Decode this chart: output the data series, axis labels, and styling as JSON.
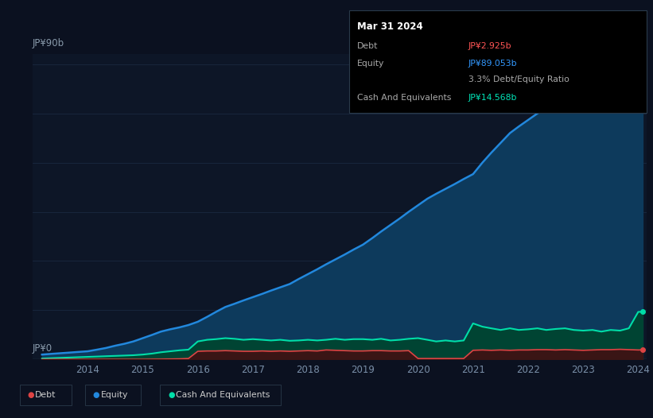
{
  "bg_color": "#0b1120",
  "plot_bg_color": "#0d1627",
  "grid_color": "#1a2840",
  "title_box": {
    "date": "Mar 31 2024",
    "debt_label": "Debt",
    "debt_value": "JP¥2.925b",
    "debt_color": "#ff5555",
    "equity_label": "Equity",
    "equity_value": "JP¥89.053b",
    "equity_color": "#3399ff",
    "ratio_text": "3.3% Debt/Equity Ratio",
    "ratio_bold": "3.3%",
    "ratio_rest": " Debt/Equity Ratio",
    "ratio_color_bold": "#ffffff",
    "ratio_color_rest": "#aaaaaa",
    "cash_label": "Cash And Equivalents",
    "cash_value": "JP¥14.568b",
    "cash_color": "#00e5b8",
    "box_bg": "#000000",
    "box_border": "#2a3a4a",
    "text_color": "#aaaaaa"
  },
  "ylabel_text": "JP¥90b",
  "ylabel0_text": "JP¥0",
  "x_years": [
    2013.17,
    2013.33,
    2013.5,
    2013.67,
    2013.83,
    2014.0,
    2014.17,
    2014.33,
    2014.5,
    2014.67,
    2014.83,
    2015.0,
    2015.17,
    2015.33,
    2015.5,
    2015.67,
    2015.83,
    2016.0,
    2016.17,
    2016.33,
    2016.5,
    2016.67,
    2016.83,
    2017.0,
    2017.17,
    2017.33,
    2017.5,
    2017.67,
    2017.83,
    2018.0,
    2018.17,
    2018.33,
    2018.5,
    2018.67,
    2018.83,
    2019.0,
    2019.17,
    2019.33,
    2019.5,
    2019.67,
    2019.83,
    2020.0,
    2020.17,
    2020.33,
    2020.5,
    2020.67,
    2020.83,
    2021.0,
    2021.17,
    2021.33,
    2021.5,
    2021.67,
    2021.83,
    2022.0,
    2022.17,
    2022.33,
    2022.5,
    2022.67,
    2022.83,
    2023.0,
    2023.17,
    2023.33,
    2023.5,
    2023.67,
    2023.83,
    2024.0,
    2024.08
  ],
  "equity": [
    1.5,
    1.7,
    1.9,
    2.1,
    2.3,
    2.5,
    3.0,
    3.5,
    4.2,
    4.8,
    5.5,
    6.5,
    7.5,
    8.5,
    9.2,
    9.8,
    10.5,
    11.5,
    13.0,
    14.5,
    16.0,
    17.0,
    18.0,
    19.0,
    20.0,
    21.0,
    22.0,
    23.0,
    24.5,
    26.0,
    27.5,
    29.0,
    30.5,
    32.0,
    33.5,
    35.0,
    37.0,
    39.0,
    41.0,
    43.0,
    45.0,
    47.0,
    49.0,
    50.5,
    52.0,
    53.5,
    55.0,
    56.5,
    60.0,
    63.0,
    66.0,
    69.0,
    71.0,
    73.0,
    75.0,
    76.5,
    78.0,
    79.5,
    80.5,
    81.5,
    82.5,
    83.5,
    84.5,
    85.5,
    86.5,
    89.0,
    89.053
  ],
  "debt": [
    0.05,
    0.05,
    0.05,
    0.05,
    0.05,
    0.05,
    0.05,
    0.05,
    0.05,
    0.05,
    0.05,
    0.05,
    0.08,
    0.1,
    0.15,
    0.2,
    0.3,
    2.5,
    2.6,
    2.6,
    2.7,
    2.6,
    2.5,
    2.5,
    2.6,
    2.5,
    2.6,
    2.5,
    2.6,
    2.7,
    2.6,
    2.9,
    2.8,
    2.7,
    2.6,
    2.6,
    2.7,
    2.7,
    2.6,
    2.6,
    2.7,
    0.3,
    0.3,
    0.3,
    0.3,
    0.3,
    0.3,
    2.8,
    2.9,
    2.8,
    2.9,
    2.8,
    2.9,
    2.9,
    3.0,
    3.0,
    2.9,
    3.0,
    2.9,
    2.8,
    2.9,
    3.0,
    3.0,
    3.1,
    3.0,
    2.9,
    2.925
  ],
  "cash": [
    0.3,
    0.4,
    0.5,
    0.6,
    0.7,
    0.8,
    0.9,
    1.0,
    1.1,
    1.2,
    1.3,
    1.5,
    1.8,
    2.2,
    2.5,
    2.8,
    3.0,
    5.5,
    6.0,
    6.2,
    6.5,
    6.3,
    6.0,
    6.2,
    6.0,
    5.8,
    6.0,
    5.7,
    5.8,
    6.0,
    5.8,
    6.0,
    6.3,
    6.0,
    6.2,
    6.2,
    6.0,
    6.3,
    5.8,
    6.0,
    6.3,
    6.5,
    6.0,
    5.5,
    5.8,
    5.5,
    5.8,
    11.0,
    10.0,
    9.5,
    9.0,
    9.5,
    9.0,
    9.2,
    9.5,
    9.0,
    9.3,
    9.5,
    9.0,
    8.8,
    9.0,
    8.5,
    9.0,
    8.8,
    9.5,
    14.5,
    14.568
  ],
  "equity_color": "#2288dd",
  "equity_fill": "#0d3a5c",
  "debt_color": "#dd4444",
  "debt_fill": "#3a1515",
  "cash_color": "#00dda8",
  "cash_fill": "#004433",
  "xticks": [
    2014,
    2015,
    2016,
    2017,
    2018,
    2019,
    2020,
    2021,
    2022,
    2023,
    2024
  ],
  "xlim": [
    2013.0,
    2024.15
  ],
  "ylim": [
    0,
    93
  ],
  "zero_line_y": 0,
  "legend_labels": [
    "Debt",
    "Equity",
    "Cash And Equivalents"
  ],
  "legend_colors": [
    "#dd4444",
    "#2288dd",
    "#00dda8"
  ]
}
